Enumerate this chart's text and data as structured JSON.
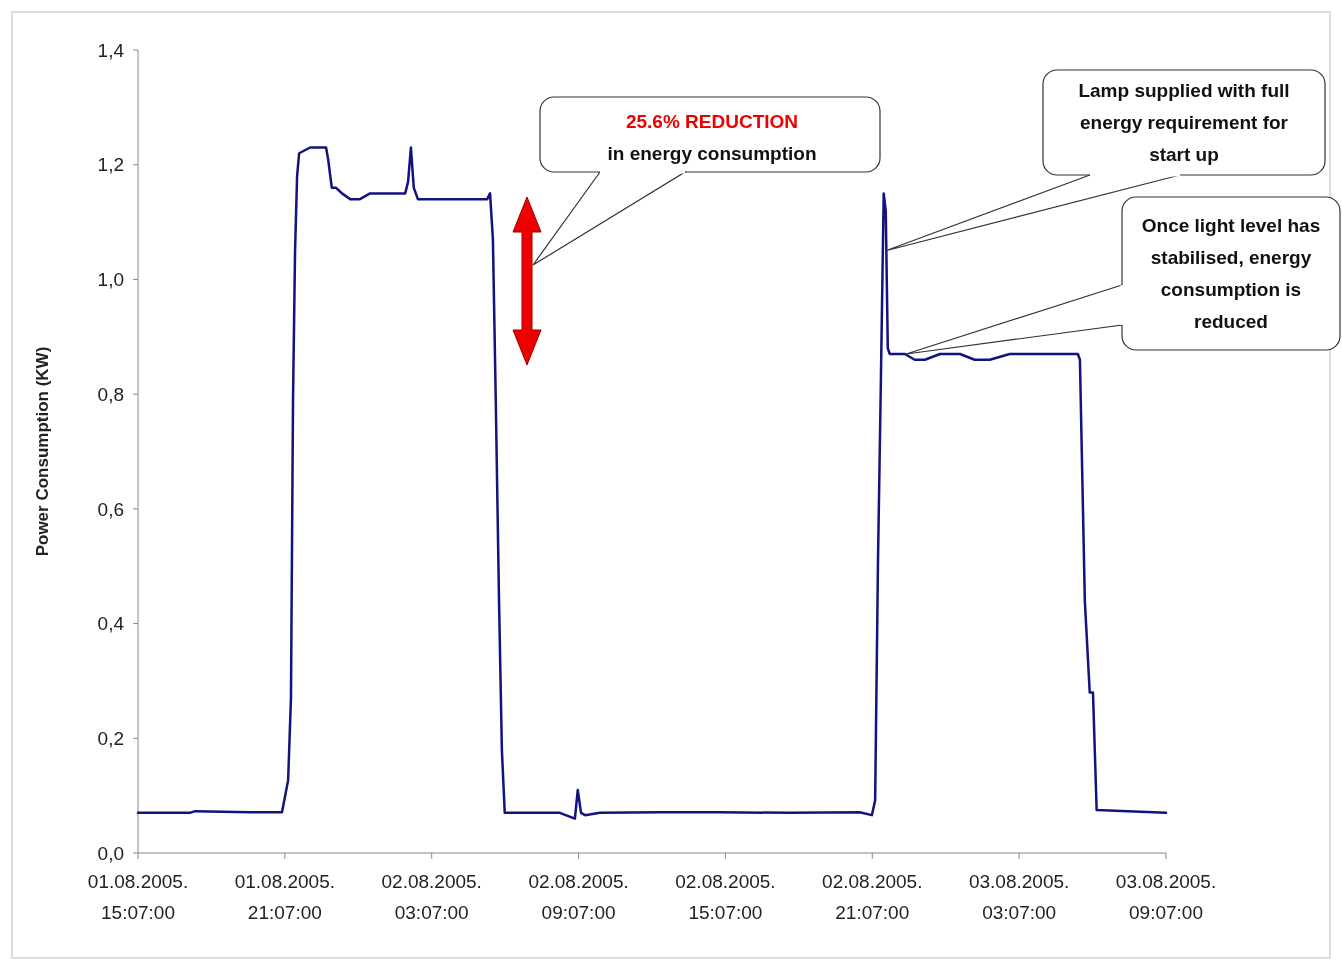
{
  "chart_data": {
    "type": "line",
    "ylabel": "Power Consumption (KW)",
    "xlim": [
      "2005-08-01T15:07",
      "2005-08-03T09:07"
    ],
    "xticks": [
      {
        "value": "2005-08-01T15:07",
        "label": "01.08.2005.\n15:07:00"
      },
      {
        "value": "2005-08-01T21:07",
        "label": "01.08.2005.\n21:07:00"
      },
      {
        "value": "2005-08-02T03:07",
        "label": "02.08.2005.\n03:07:00"
      },
      {
        "value": "2005-08-02T09:07",
        "label": "02.08.2005.\n09:07:00"
      },
      {
        "value": "2005-08-02T15:07",
        "label": "02.08.2005.\n15:07:00"
      },
      {
        "value": "2005-08-02T21:07",
        "label": "02.08.2005.\n21:07:00"
      },
      {
        "value": "2005-08-03T03:07",
        "label": "03.08.2005.\n03:07:00"
      },
      {
        "value": "2005-08-03T09:07",
        "label": "03.08.2005.\n09:07:00"
      }
    ],
    "ylim": [
      0,
      1.4
    ],
    "yticks": [
      {
        "value": 0,
        "label": "0,0"
      },
      {
        "value": 0.2,
        "label": "0,2"
      },
      {
        "value": 0.4,
        "label": "0,4"
      },
      {
        "value": 0.6,
        "label": "0,6"
      },
      {
        "value": 0.8,
        "label": "0,8"
      },
      {
        "value": 1.0,
        "label": "1,0"
      },
      {
        "value": 1.2,
        "label": "1,2"
      },
      {
        "value": 1.4,
        "label": "1,4"
      }
    ],
    "grid": false,
    "marker": "none",
    "line_style": "solid",
    "x": [
      "2005-08-01T15:07",
      "2005-08-01T17:14",
      "2005-08-01T17:27",
      "2005-08-01T19:42",
      "2005-08-01T21:00",
      "2005-08-01T21:15",
      "2005-08-01T21:22",
      "2005-08-01T21:27",
      "2005-08-01T21:32",
      "2005-08-01T21:37",
      "2005-08-01T21:42",
      "2005-08-01T22:09",
      "2005-08-01T22:28",
      "2005-08-01T22:38",
      "2005-08-01T22:48",
      "2005-08-01T22:53",
      "2005-08-01T23:02",
      "2005-08-01T23:12",
      "2005-08-01T23:27",
      "2005-08-01T23:47",
      "2005-08-02T00:11",
      "2005-08-02T00:36",
      "2005-08-02T01:00",
      "2005-08-02T01:24",
      "2005-08-02T01:49",
      "2005-08-02T02:02",
      "2005-08-02T02:09",
      "2005-08-02T02:16",
      "2005-08-02T02:23",
      "2005-08-02T02:33",
      "2005-08-02T03:03",
      "2005-08-02T03:27",
      "2005-08-02T03:52",
      "2005-08-02T04:16",
      "2005-08-02T05:05",
      "2005-08-02T05:23",
      "2005-08-02T05:30",
      "2005-08-02T05:37",
      "2005-08-02T05:44",
      "2005-08-02T05:52",
      "2005-08-02T05:59",
      "2005-08-02T06:06",
      "2005-08-02T06:43",
      "2005-08-02T08:21",
      "2005-08-02T08:58",
      "2005-08-02T09:05",
      "2005-08-02T09:13",
      "2005-08-02T09:23",
      "2005-08-02T09:59",
      "2005-08-02T12:26",
      "2005-08-02T14:53",
      "2005-08-02T17:45",
      "2005-08-02T20:36",
      "2005-08-02T21:06",
      "2005-08-02T21:14",
      "2005-08-02T21:21",
      "2005-08-02T21:28",
      "2005-08-02T21:35",
      "2005-08-02T21:40",
      "2005-08-02T21:45",
      "2005-08-02T21:50",
      "2005-08-02T22:27",
      "2005-08-02T22:51",
      "2005-08-02T23:16",
      "2005-08-02T23:53",
      "2005-08-03T00:42",
      "2005-08-03T01:18",
      "2005-08-03T01:31",
      "2005-08-03T01:55",
      "2005-08-03T02:44",
      "2005-08-03T03:33",
      "2005-08-03T04:47",
      "2005-08-03T05:31",
      "2005-08-03T05:36",
      "2005-08-03T05:48",
      "2005-08-03T06:00",
      "2005-08-03T06:08",
      "2005-08-03T06:17",
      "2005-08-03T09:07"
    ],
    "series": [
      {
        "color": "#13137f",
        "values": [
          0.07,
          0.07,
          0.073,
          0.071,
          0.071,
          0.127,
          0.27,
          0.79,
          1.05,
          1.18,
          1.22,
          1.23,
          1.23,
          1.23,
          1.23,
          1.21,
          1.16,
          1.16,
          1.15,
          1.14,
          1.14,
          1.15,
          1.15,
          1.15,
          1.15,
          1.15,
          1.17,
          1.23,
          1.16,
          1.14,
          1.14,
          1.14,
          1.14,
          1.14,
          1.14,
          1.14,
          1.15,
          1.07,
          0.79,
          0.44,
          0.18,
          0.07,
          0.07,
          0.07,
          0.06,
          0.11,
          0.07,
          0.066,
          0.07,
          0.071,
          0.071,
          0.07,
          0.071,
          0.066,
          0.092,
          0.51,
          0.82,
          1.15,
          1.12,
          0.88,
          0.87,
          0.87,
          0.86,
          0.86,
          0.87,
          0.87,
          0.86,
          0.86,
          0.86,
          0.87,
          0.87,
          0.87,
          0.87,
          0.86,
          0.44,
          0.28,
          0.28,
          0.075,
          0.07
        ]
      }
    ],
    "annotations": [
      "25.6% REDUCTION",
      "in energy consumption",
      {
        "text": "Lamp supplied with full energy requirement for start up",
        "x": "2005-08-02T21:40",
        "y": 1.05
      },
      {
        "text": "Once light level has stabilised, energy consumption is reduced",
        "x": "2005-08-02T22:30",
        "y": 0.87
      }
    ]
  }
}
